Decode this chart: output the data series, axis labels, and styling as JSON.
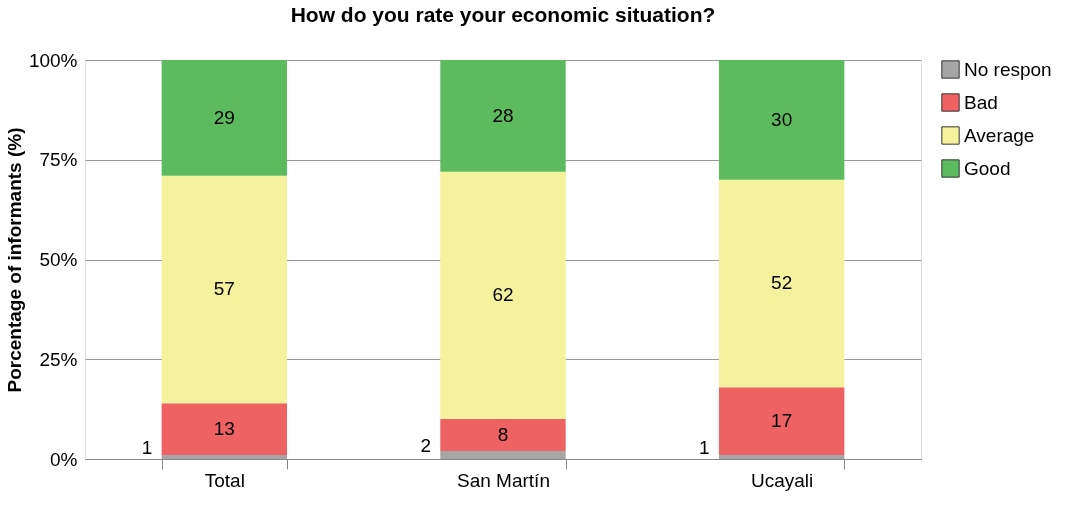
{
  "chart_data": {
    "type": "bar",
    "stacked": true,
    "title": "How do you rate your economic situation?",
    "ylabel": "Porcentage of informants (%)",
    "categories": [
      "Total",
      "San Martín",
      "Ucayali"
    ],
    "series": [
      {
        "name": "No respon",
        "color": "#a6a6a6",
        "values": [
          1,
          2,
          1
        ]
      },
      {
        "name": "Bad",
        "color": "#ef6264",
        "values": [
          13,
          8,
          17
        ]
      },
      {
        "name": "Average",
        "color": "#f4f29d",
        "values": [
          57,
          62,
          52
        ]
      },
      {
        "name": "Good",
        "color": "#5dbb5f",
        "values": [
          29,
          28,
          30
        ]
      }
    ],
    "ylim": [
      0,
      100
    ],
    "yticks": [
      {
        "value": 0,
        "label": "0%"
      },
      {
        "value": 25,
        "label": "25%"
      },
      {
        "value": 50,
        "label": "50%"
      },
      {
        "value": 75,
        "label": "75%"
      },
      {
        "value": 100,
        "label": "100%"
      }
    ],
    "grid": "y",
    "legend": "right",
    "data_labels": true
  }
}
